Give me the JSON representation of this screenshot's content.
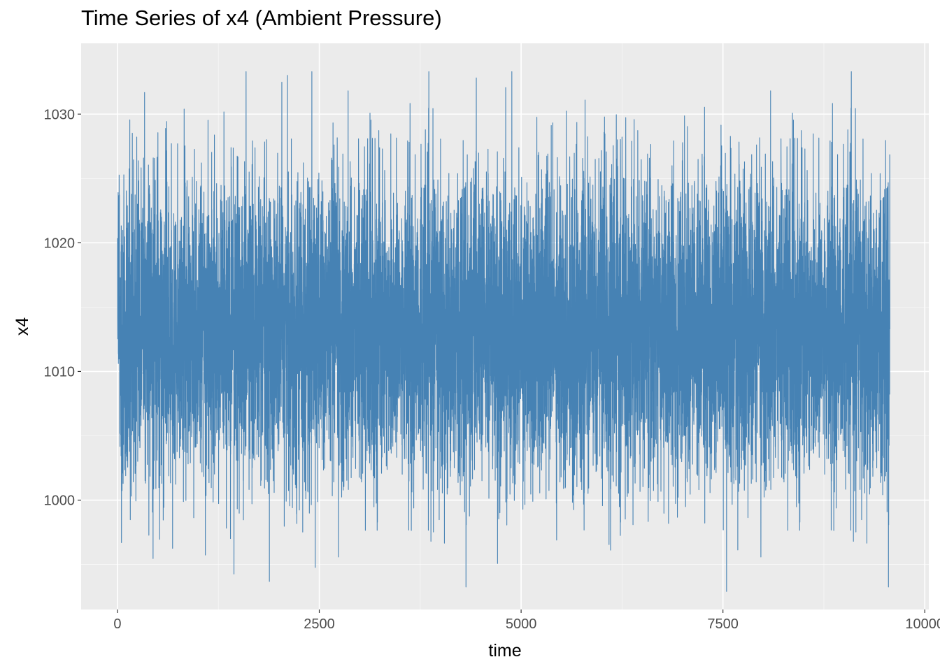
{
  "chart_data": {
    "type": "line",
    "title": "Time Series of x4 (Ambient Pressure)",
    "xlabel": "time",
    "ylabel": "x4",
    "xlim": [
      -450,
      10050
    ],
    "ylim": [
      991.5,
      1035.5
    ],
    "x_ticks": [
      0,
      2500,
      5000,
      7500,
      10000
    ],
    "x_tick_labels": [
      "0",
      "2500",
      "5000",
      "7500",
      "10000"
    ],
    "y_ticks": [
      1000,
      1010,
      1020,
      1030
    ],
    "y_tick_labels": [
      "1000",
      "1010",
      "1020",
      "1030"
    ],
    "grid": true,
    "legend": "none",
    "series": [
      {
        "color": "#4682B4",
        "n_points": 9568,
        "x_range": [
          1,
          9568
        ],
        "mean": 1013.3,
        "sd": 5.9,
        "min": 992.9,
        "max": 1033.3
      }
    ],
    "colors": {
      "panel_background": "#EBEBEB",
      "grid_major": "#FFFFFF",
      "series_line": "#4682B4"
    }
  }
}
